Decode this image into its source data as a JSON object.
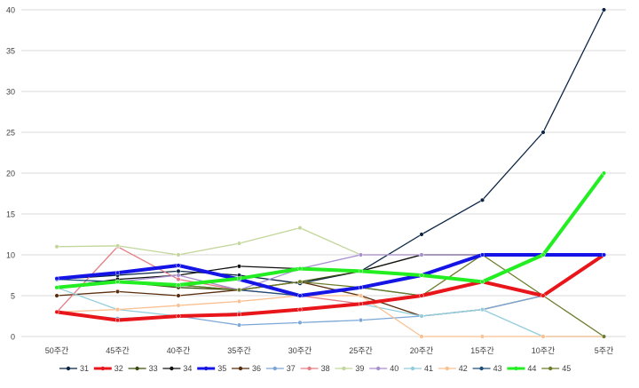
{
  "chart_data": {
    "type": "line",
    "categories": [
      "50주간",
      "45주간",
      "40주간",
      "35주간",
      "30주간",
      "25주간",
      "20주간",
      "15주간",
      "10주간",
      "5주간"
    ],
    "ylim": [
      0,
      40
    ],
    "yticks": [
      0,
      5,
      10,
      15,
      20,
      25,
      30,
      35,
      40
    ],
    "grid": true,
    "legend_position": "bottom",
    "series": [
      {
        "name": "31",
        "color": "#0b2545",
        "bold": false,
        "values": [
          7,
          7.5,
          8,
          7.5,
          6.5,
          8,
          12.5,
          16.7,
          25,
          40
        ]
      },
      {
        "name": "32",
        "color": "#e8161b",
        "bold": true,
        "values": [
          3,
          2,
          2.5,
          2.7,
          3.3,
          4,
          5,
          6.7,
          5,
          10
        ]
      },
      {
        "name": "33",
        "color": "#3a4d0f",
        "bold": false,
        "values": [
          6,
          6.7,
          6,
          5.7,
          6.7,
          8,
          10,
          10,
          10,
          10
        ]
      },
      {
        "name": "34",
        "color": "#111111",
        "bold": false,
        "values": [
          6,
          7,
          7.5,
          8.6,
          8.3,
          8,
          10,
          10,
          10,
          10
        ]
      },
      {
        "name": "35",
        "color": "#1414e6",
        "bold": true,
        "values": [
          7.1,
          7.8,
          8.7,
          7,
          5,
          6,
          7.5,
          10,
          10,
          10
        ]
      },
      {
        "name": "36",
        "color": "#5a2d0c",
        "bold": false,
        "values": [
          5,
          5.5,
          5,
          5.7,
          6.7,
          5,
          2.5,
          3.3,
          5,
          10
        ]
      },
      {
        "name": "37",
        "color": "#7ba7d8",
        "bold": false,
        "values": [
          3,
          2.2,
          2.5,
          1.4,
          1.7,
          2,
          2.5,
          3.3,
          5,
          10
        ]
      },
      {
        "name": "38",
        "color": "#e47d85",
        "bold": false,
        "values": [
          3,
          11,
          7,
          5.7,
          5,
          4,
          5,
          6.7,
          5,
          10
        ]
      },
      {
        "name": "39",
        "color": "#c3d69b",
        "bold": false,
        "values": [
          11,
          11.1,
          10,
          11.4,
          13.3,
          10,
          10,
          10,
          10,
          10
        ]
      },
      {
        "name": "40",
        "color": "#a98fd0",
        "bold": false,
        "values": [
          6,
          6.7,
          7.5,
          5.7,
          8.3,
          10,
          10,
          10,
          10,
          10
        ]
      },
      {
        "name": "41",
        "color": "#92cddc",
        "bold": false,
        "values": [
          6,
          3.3,
          2.5,
          2.9,
          3.3,
          4,
          2.5,
          3.3,
          0,
          0
        ]
      },
      {
        "name": "42",
        "color": "#fac090",
        "bold": false,
        "values": [
          3,
          3.3,
          3.8,
          4.3,
          5,
          5,
          0,
          0,
          0,
          0
        ]
      },
      {
        "name": "43",
        "color": "#1f4e79",
        "bold": false,
        "values": [
          7,
          6.7,
          6.3,
          5.7,
          5,
          6,
          5,
          6.7,
          10,
          10
        ]
      },
      {
        "name": "44",
        "color": "#22ee22",
        "bold": true,
        "values": [
          6,
          6.7,
          6.3,
          7.1,
          8.3,
          8,
          7.5,
          6.7,
          10,
          20
        ]
      },
      {
        "name": "45",
        "color": "#6b7d2a",
        "bold": false,
        "values": [
          6,
          6.7,
          6.3,
          5.7,
          6.7,
          6,
          5,
          10,
          5,
          0
        ]
      }
    ]
  }
}
